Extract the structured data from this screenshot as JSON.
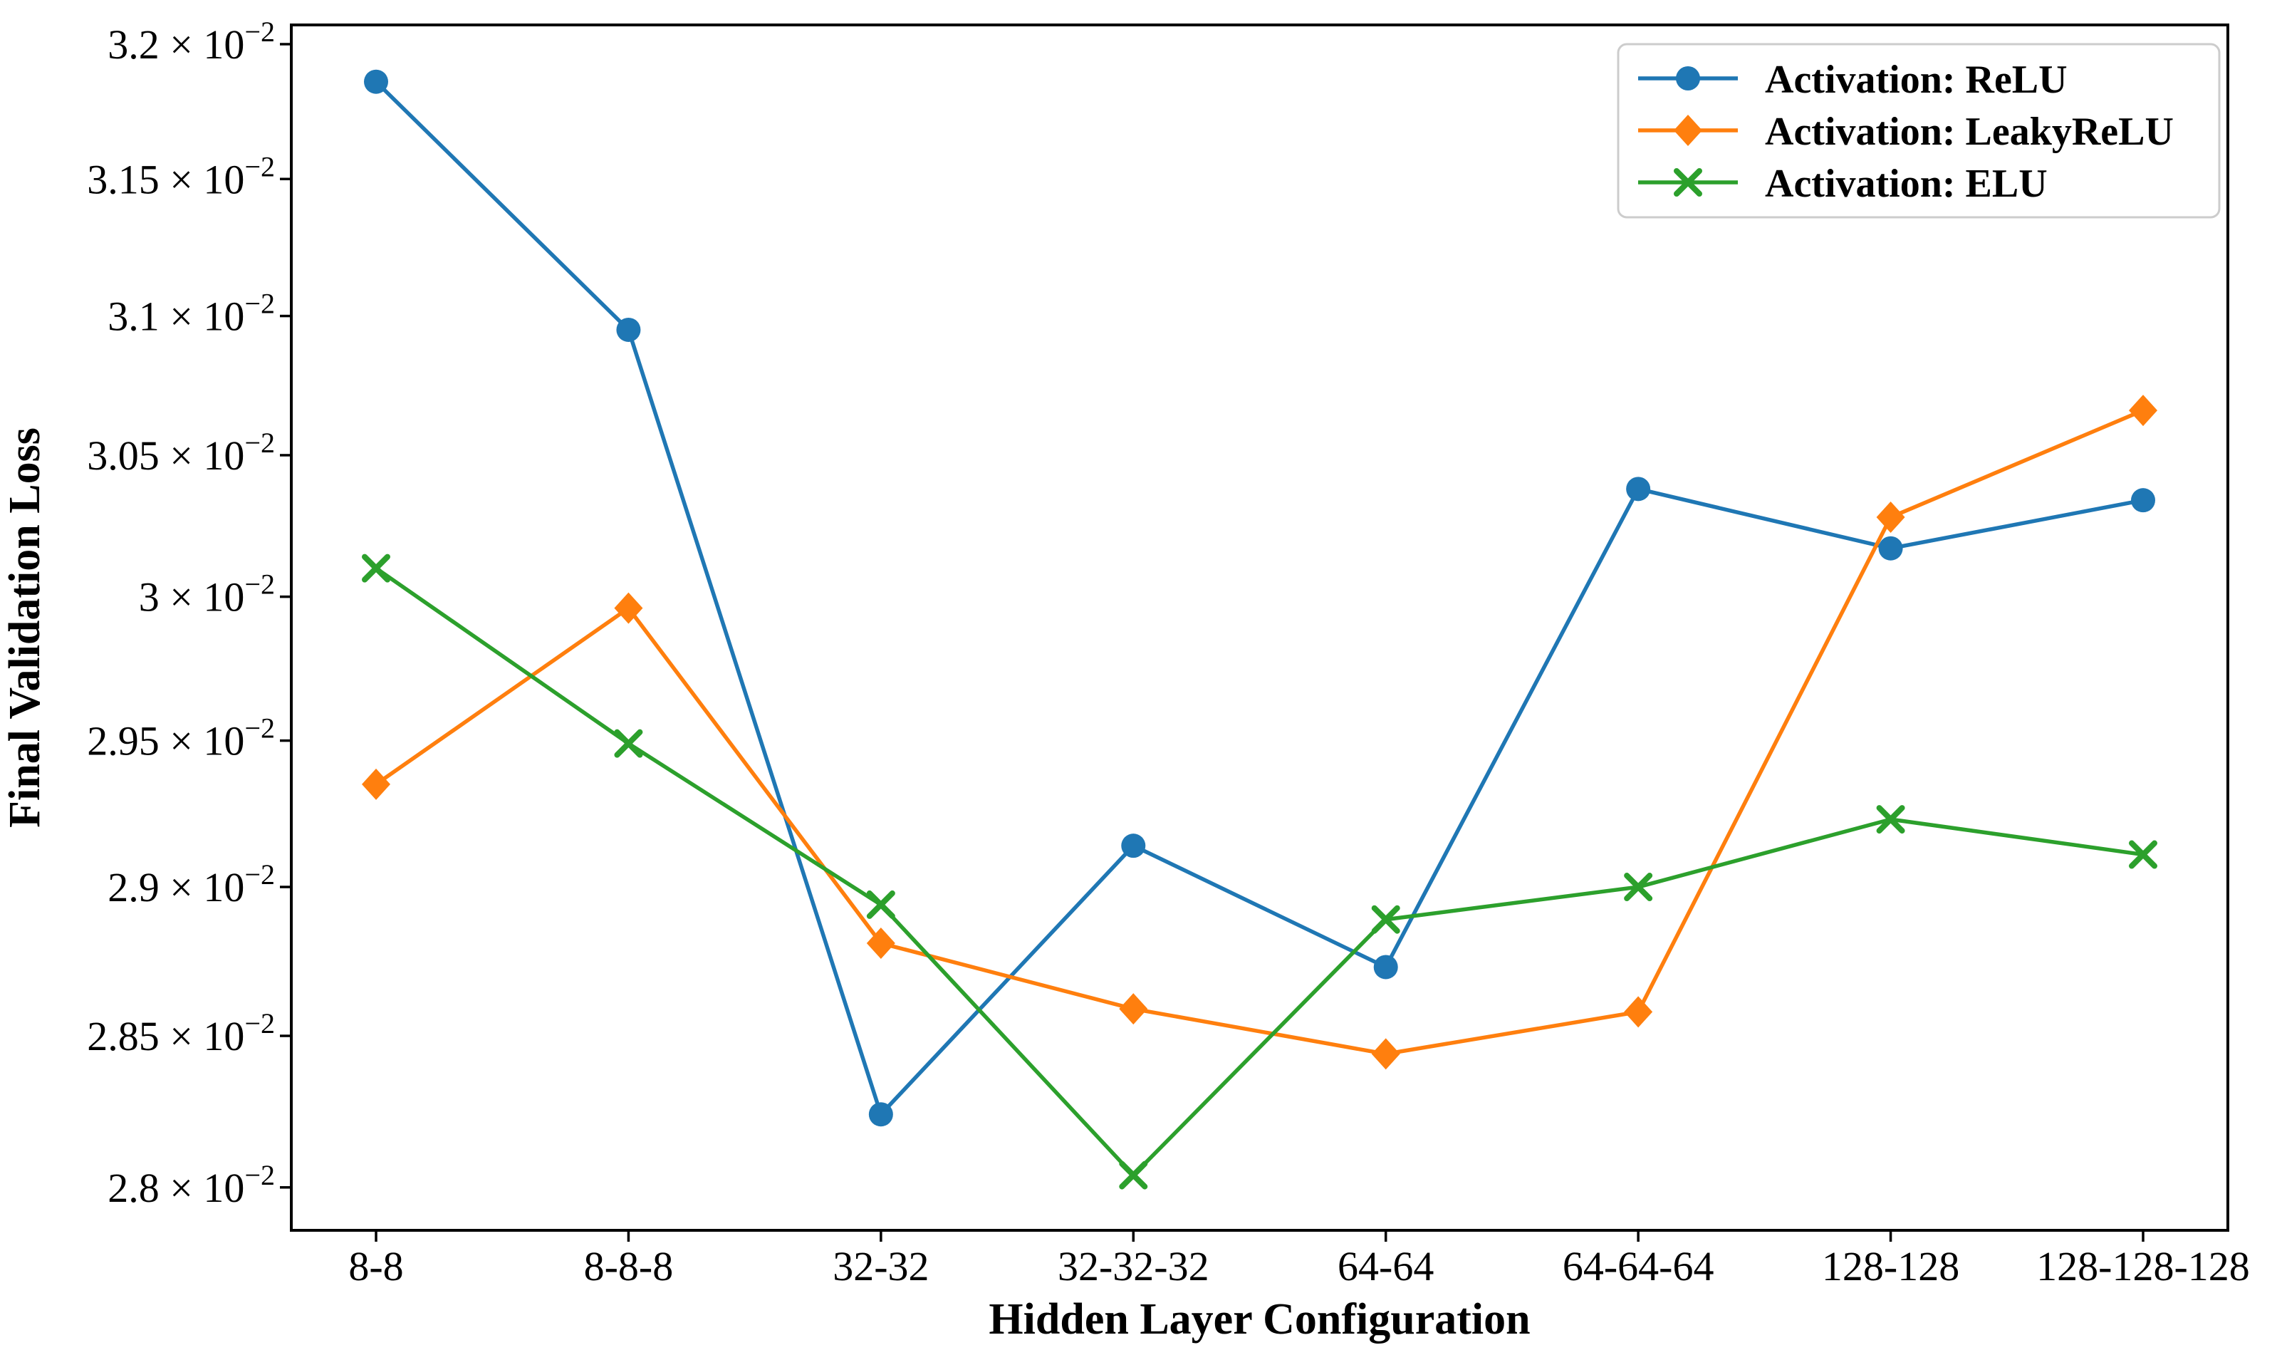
{
  "figure": {
    "background_color": "#ffffff",
    "spine_color": "#000000",
    "tick_color": "#000000",
    "text_color": "#000000"
  },
  "chart_data": {
    "type": "line",
    "title": "",
    "xlabel": "Hidden Layer Configuration",
    "ylabel": "Final Validation Loss",
    "yscale": "log",
    "grid": false,
    "legend_position": "upper right",
    "categories": [
      "8-8",
      "8-8-8",
      "32-32",
      "32-32-32",
      "64-64",
      "64-64-64",
      "128-128",
      "128-128-128"
    ],
    "series": [
      {
        "name": "Activation: ReLU",
        "color": "#1f77b4",
        "marker": "circle",
        "values": [
          0.03186,
          0.03095,
          0.02824,
          0.02914,
          0.02873,
          0.03038,
          0.03017,
          0.03034
        ]
      },
      {
        "name": "Activation: LeakyReLU",
        "color": "#ff7f0e",
        "marker": "diamond",
        "values": [
          0.02935,
          0.02996,
          0.02881,
          0.02859,
          0.02844,
          0.02858,
          0.03028,
          0.03066
        ]
      },
      {
        "name": "Activation: ELU",
        "color": "#2ca02c",
        "marker": "x",
        "values": [
          0.0301,
          0.02949,
          0.02894,
          0.02804,
          0.02889,
          0.029,
          0.02923,
          0.02911
        ]
      }
    ],
    "ylim": [
      0.02786,
      0.032072
    ],
    "yticks": [
      {
        "value": 0.032,
        "mantissa": "3.2",
        "exponent": "−2"
      },
      {
        "value": 0.0315,
        "mantissa": "3.15",
        "exponent": "−2"
      },
      {
        "value": 0.031,
        "mantissa": "3.1",
        "exponent": "−2"
      },
      {
        "value": 0.0305,
        "mantissa": "3.05",
        "exponent": "−2"
      },
      {
        "value": 0.03,
        "mantissa": "3",
        "exponent": "−2"
      },
      {
        "value": 0.0295,
        "mantissa": "2.95",
        "exponent": "−2"
      },
      {
        "value": 0.029,
        "mantissa": "2.9",
        "exponent": "−2"
      },
      {
        "value": 0.0285,
        "mantissa": "2.85",
        "exponent": "−2"
      },
      {
        "value": 0.028,
        "mantissa": "2.8",
        "exponent": "−2"
      }
    ],
    "tick_times_text": " × 10",
    "legend": {
      "items": [
        {
          "label": "Activation: ReLU",
          "color": "#1f77b4",
          "marker": "circle"
        },
        {
          "label": "Activation: LeakyReLU",
          "color": "#ff7f0e",
          "marker": "diamond"
        },
        {
          "label": "Activation: ELU",
          "color": "#2ca02c",
          "marker": "x"
        }
      ],
      "border_color": "#cccccc",
      "background_color": "#ffffff"
    }
  }
}
